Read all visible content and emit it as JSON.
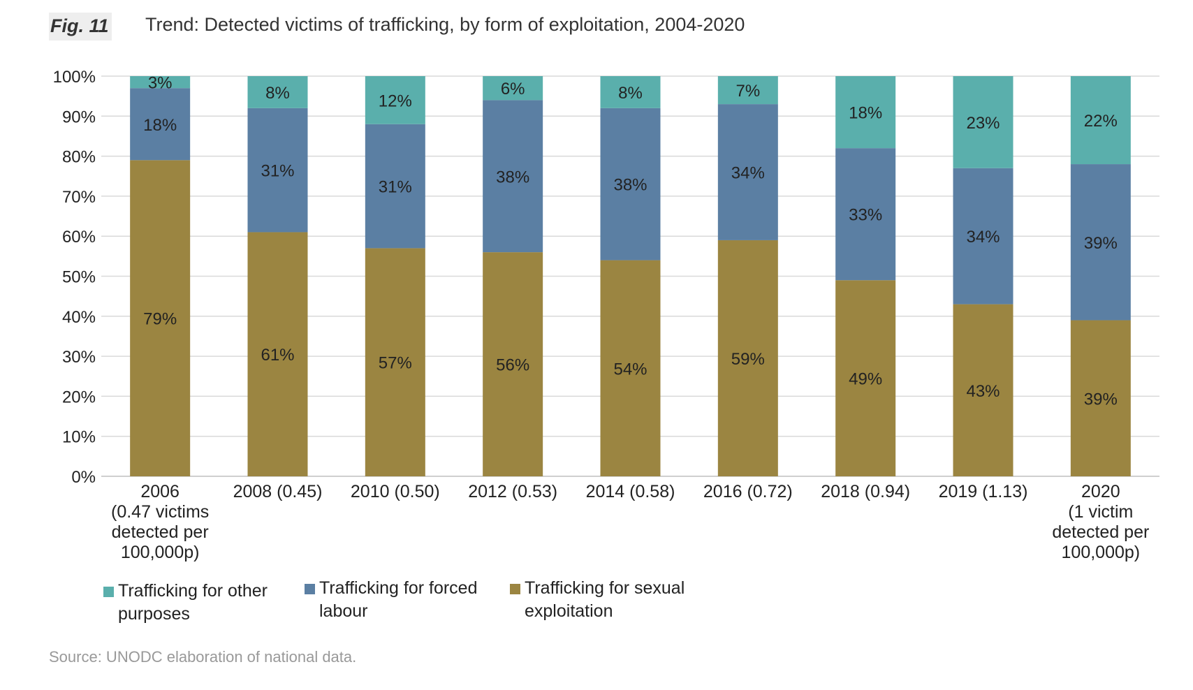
{
  "figure": {
    "label": "Fig. 11",
    "title": "Trend: Detected victims of trafficking, by form of exploitation, 2004-2020",
    "source": "Source: UNODC elaboration of national data."
  },
  "colors": {
    "other": "#5aafac",
    "forced": "#5b7fa3",
    "sexual": "#9b8541",
    "grid": "#d9d9d9",
    "text": "#222222"
  },
  "chart_data": {
    "type": "bar",
    "stacked": true,
    "categories": [
      [
        "2006",
        "(0.47 victims",
        "detected per",
        "100,000p)"
      ],
      [
        "2008 (0.45)"
      ],
      [
        "2010 (0.50)"
      ],
      [
        "2012 (0.53)"
      ],
      [
        "2014 (0.58)"
      ],
      [
        "2016 (0.72)"
      ],
      [
        "2018 (0.94)"
      ],
      [
        "2019  (1.13)"
      ],
      [
        "2020",
        "(1 victim",
        "detected per",
        "100,000p)"
      ]
    ],
    "series": [
      {
        "key": "sexual",
        "name": "Trafficking for sexual exploitation",
        "values": [
          79,
          61,
          57,
          56,
          54,
          59,
          49,
          43,
          39
        ]
      },
      {
        "key": "forced",
        "name": "Trafficking for forced labour",
        "values": [
          18,
          31,
          31,
          38,
          38,
          34,
          33,
          34,
          39
        ]
      },
      {
        "key": "other",
        "name": "Trafficking for other purposes",
        "values": [
          3,
          8,
          12,
          6,
          8,
          7,
          18,
          23,
          22
        ]
      }
    ],
    "yticks": [
      "0%",
      "10%",
      "20%",
      "30%",
      "40%",
      "50%",
      "60%",
      "70%",
      "80%",
      "90%",
      "100%"
    ],
    "ylim": [
      0,
      100
    ],
    "grid": true,
    "legend_position": "bottom-left"
  },
  "legend": [
    {
      "key": "other",
      "lines": [
        "Trafficking for other",
        "purposes"
      ]
    },
    {
      "key": "forced",
      "lines": [
        "Trafficking for forced",
        "labour"
      ]
    },
    {
      "key": "sexual",
      "lines": [
        "Trafficking for sexual",
        "exploitation"
      ]
    }
  ]
}
